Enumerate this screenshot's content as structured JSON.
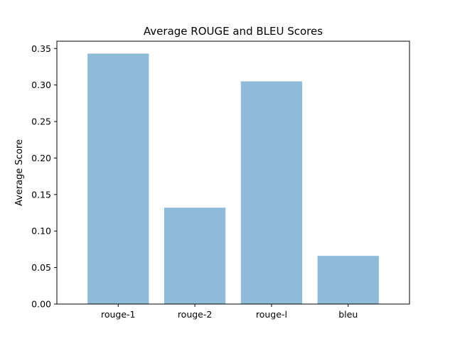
{
  "chart_data": {
    "type": "bar",
    "title": "Average ROUGE and BLEU Scores",
    "xlabel": "",
    "ylabel": "Average Score",
    "categories": [
      "rouge-1",
      "rouge-2",
      "rouge-l",
      "bleu"
    ],
    "values": [
      0.343,
      0.132,
      0.305,
      0.066
    ],
    "ylim": [
      0,
      0.36
    ],
    "yticks": [
      0.0,
      0.05,
      0.1,
      0.15,
      0.2,
      0.25,
      0.3,
      0.35
    ],
    "ytick_labels": [
      "0.00",
      "0.05",
      "0.10",
      "0.15",
      "0.20",
      "0.25",
      "0.30",
      "0.35"
    ],
    "bar_color": "#8fbad9",
    "grid": false,
    "legend": "none"
  }
}
